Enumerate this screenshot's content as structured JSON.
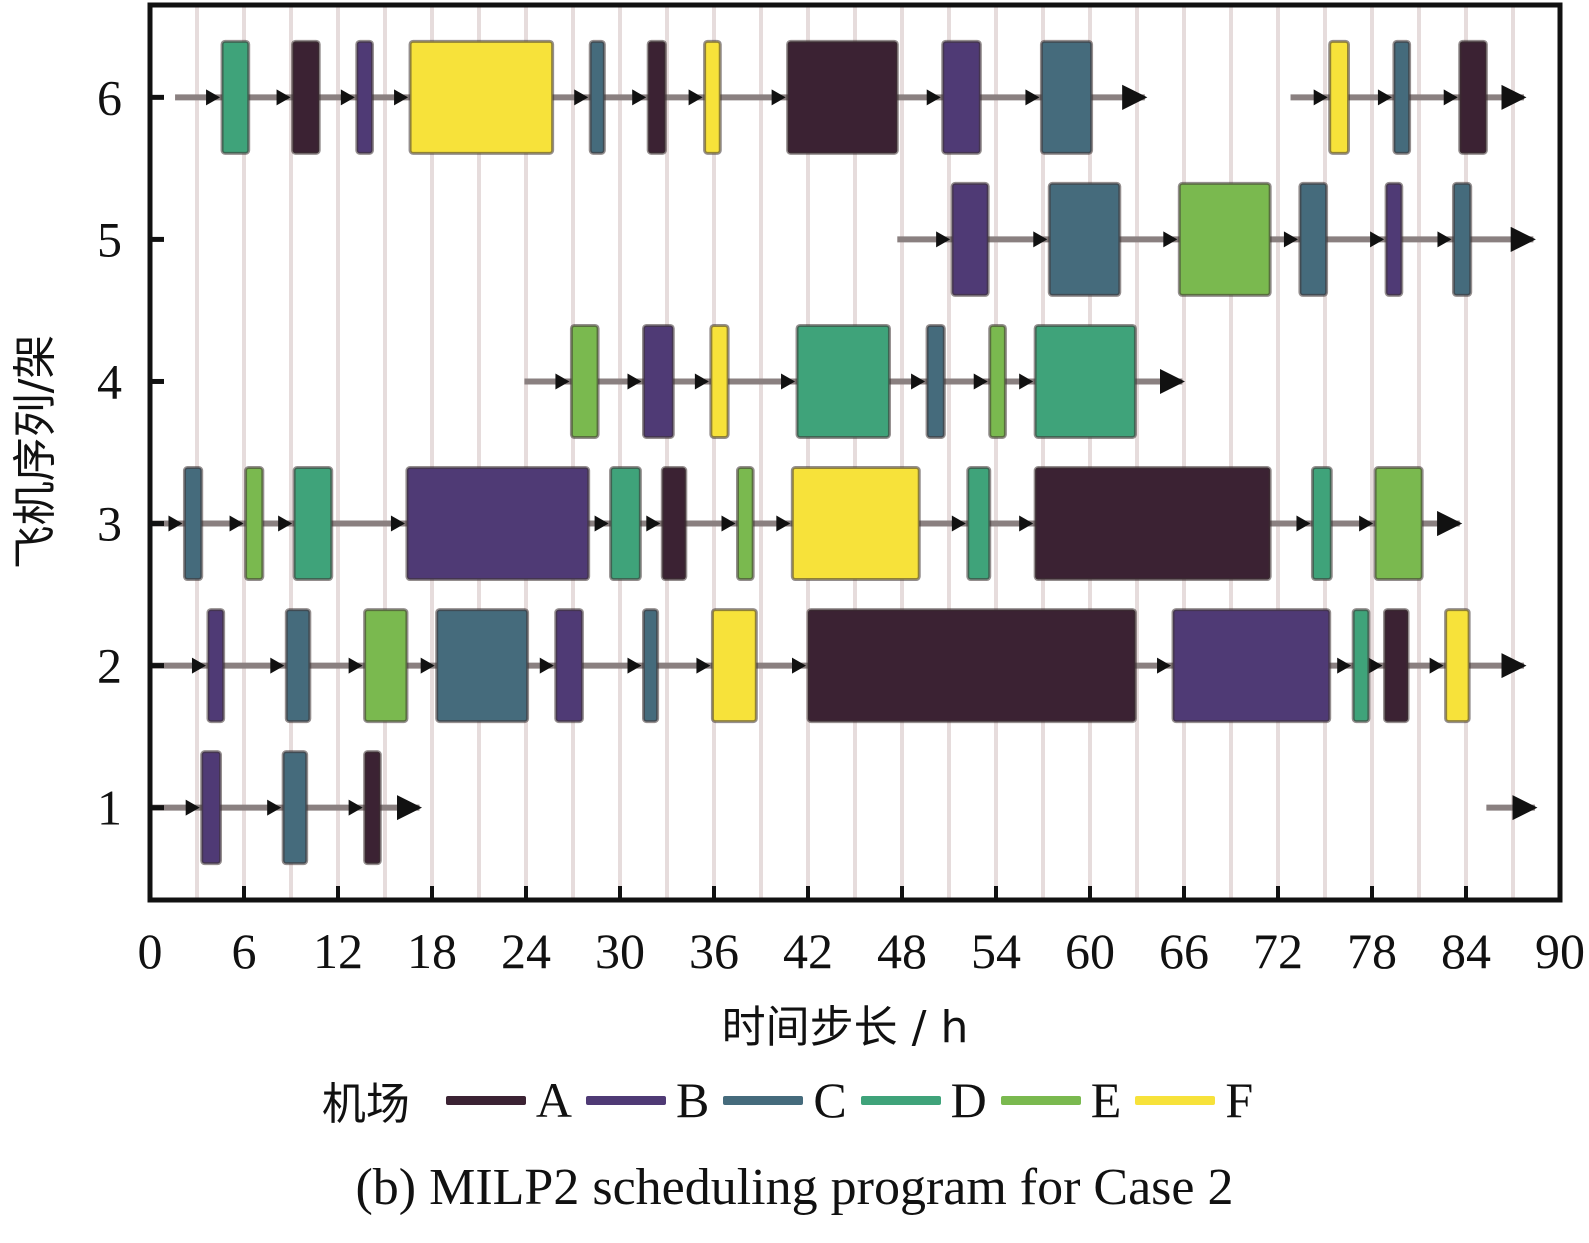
{
  "chart_data": {
    "type": "gantt",
    "title": "",
    "caption": "(b) MILP2 scheduling program for Case 2",
    "xlabel": "时间步长 / h",
    "ylabel": "飞机序列/架",
    "xlim": [
      0,
      90
    ],
    "ylim": [
      0.35,
      6.65
    ],
    "xticks": [
      0,
      6,
      12,
      18,
      24,
      30,
      36,
      42,
      48,
      54,
      60,
      66,
      72,
      78,
      84,
      90
    ],
    "yticks": [
      1,
      2,
      3,
      4,
      5,
      6
    ],
    "grid": "vertical lines every 3 h",
    "legend": {
      "title": "机场",
      "placement": "bottom",
      "entries": [
        {
          "label": "A",
          "color": "#3b2233"
        },
        {
          "label": "B",
          "color": "#4f3a75"
        },
        {
          "label": "C",
          "color": "#456b7c"
        },
        {
          "label": "D",
          "color": "#3fa37a"
        },
        {
          "label": "E",
          "color": "#7ab94f"
        },
        {
          "label": "F",
          "color": "#f7e23a"
        }
      ]
    },
    "series": [
      {
        "aircraft": 1,
        "paths": [
          [
            0,
            17.2
          ],
          [
            85.3,
            88.4
          ]
        ],
        "tasks": [
          {
            "airport": "B",
            "start": 3.3,
            "end": 4.5
          },
          {
            "airport": "C",
            "start": 8.5,
            "end": 10.0
          },
          {
            "airport": "A",
            "start": 13.7,
            "end": 14.7
          }
        ]
      },
      {
        "aircraft": 2,
        "paths": [
          [
            0,
            87.7
          ]
        ],
        "tasks": [
          {
            "airport": "B",
            "start": 3.7,
            "end": 4.7
          },
          {
            "airport": "C",
            "start": 8.7,
            "end": 10.2
          },
          {
            "airport": "E",
            "start": 13.7,
            "end": 16.4
          },
          {
            "airport": "C",
            "start": 18.3,
            "end": 24.1
          },
          {
            "airport": "B",
            "start": 25.9,
            "end": 27.6
          },
          {
            "airport": "C",
            "start": 31.5,
            "end": 32.4
          },
          {
            "airport": "F",
            "start": 35.9,
            "end": 38.7
          },
          {
            "airport": "A",
            "start": 42.0,
            "end": 62.9
          },
          {
            "airport": "B",
            "start": 65.3,
            "end": 75.3
          },
          {
            "airport": "D",
            "start": 76.8,
            "end": 77.8
          },
          {
            "airport": "A",
            "start": 78.8,
            "end": 80.3
          },
          {
            "airport": "F",
            "start": 82.7,
            "end": 84.2
          }
        ]
      },
      {
        "aircraft": 3,
        "paths": [
          [
            0,
            83.6
          ]
        ],
        "tasks": [
          {
            "airport": "C",
            "start": 2.2,
            "end": 3.3
          },
          {
            "airport": "E",
            "start": 6.1,
            "end": 7.2
          },
          {
            "airport": "D",
            "start": 9.2,
            "end": 11.6
          },
          {
            "airport": "B",
            "start": 16.4,
            "end": 28.0
          },
          {
            "airport": "D",
            "start": 29.4,
            "end": 31.3
          },
          {
            "airport": "A",
            "start": 32.7,
            "end": 34.2
          },
          {
            "airport": "E",
            "start": 37.5,
            "end": 38.5
          },
          {
            "airport": "F",
            "start": 41.0,
            "end": 49.1
          },
          {
            "airport": "D",
            "start": 52.2,
            "end": 53.6
          },
          {
            "airport": "A",
            "start": 56.5,
            "end": 71.5
          },
          {
            "airport": "D",
            "start": 74.2,
            "end": 75.4
          },
          {
            "airport": "E",
            "start": 78.2,
            "end": 81.2
          }
        ]
      },
      {
        "aircraft": 4,
        "paths": [
          [
            23.9,
            65.9
          ]
        ],
        "tasks": [
          {
            "airport": "E",
            "start": 26.9,
            "end": 28.6
          },
          {
            "airport": "B",
            "start": 31.5,
            "end": 33.4
          },
          {
            "airport": "F",
            "start": 35.8,
            "end": 36.9
          },
          {
            "airport": "D",
            "start": 41.3,
            "end": 47.2
          },
          {
            "airport": "C",
            "start": 49.6,
            "end": 50.7
          },
          {
            "airport": "E",
            "start": 53.6,
            "end": 54.6
          },
          {
            "airport": "D",
            "start": 56.5,
            "end": 62.9
          }
        ]
      },
      {
        "aircraft": 5,
        "paths": [
          [
            47.7,
            88.3
          ]
        ],
        "tasks": [
          {
            "airport": "B",
            "start": 51.2,
            "end": 53.5
          },
          {
            "airport": "C",
            "start": 57.4,
            "end": 61.9
          },
          {
            "airport": "E",
            "start": 65.7,
            "end": 71.5
          },
          {
            "airport": "C",
            "start": 73.4,
            "end": 75.1
          },
          {
            "airport": "B",
            "start": 78.9,
            "end": 79.9
          },
          {
            "airport": "C",
            "start": 83.2,
            "end": 84.3
          }
        ]
      },
      {
        "aircraft": 6,
        "paths": [
          [
            1.6,
            63.5
          ],
          [
            72.8,
            87.7
          ]
        ],
        "tasks": [
          {
            "airport": "D",
            "start": 4.6,
            "end": 6.3
          },
          {
            "airport": "A",
            "start": 9.1,
            "end": 10.8
          },
          {
            "airport": "B",
            "start": 13.2,
            "end": 14.2
          },
          {
            "airport": "F",
            "start": 16.6,
            "end": 25.7
          },
          {
            "airport": "C",
            "start": 28.1,
            "end": 29.0
          },
          {
            "airport": "A",
            "start": 31.8,
            "end": 32.9
          },
          {
            "airport": "F",
            "start": 35.4,
            "end": 36.4
          },
          {
            "airport": "A",
            "start": 40.7,
            "end": 47.7
          },
          {
            "airport": "B",
            "start": 50.6,
            "end": 53.0
          },
          {
            "airport": "C",
            "start": 56.9,
            "end": 60.1
          },
          {
            "airport": "F",
            "start": 75.3,
            "end": 76.5
          },
          {
            "airport": "C",
            "start": 79.4,
            "end": 80.4
          },
          {
            "airport": "A",
            "start": 83.6,
            "end": 85.3
          }
        ]
      }
    ]
  }
}
